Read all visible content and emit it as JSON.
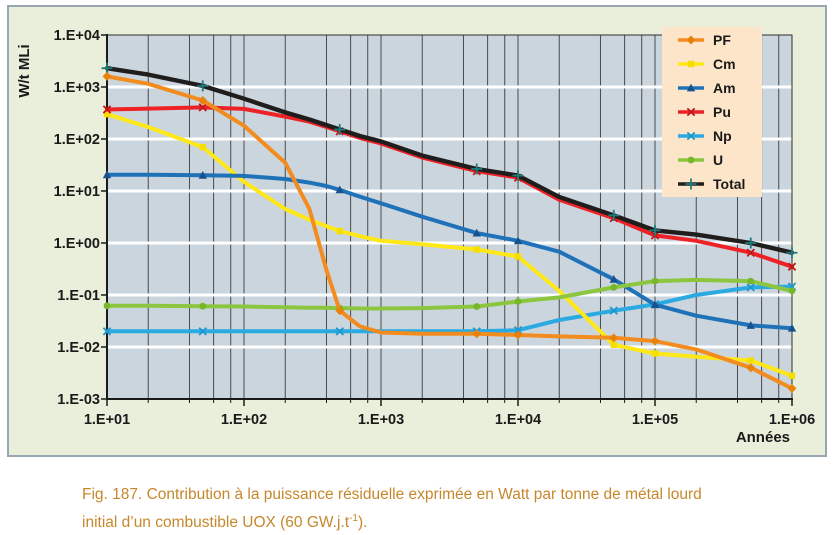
{
  "figure": {
    "caption_line1": "Fig. 187. Contribution à la puissance résiduelle exprimée en Watt par tonne de métal lourd",
    "caption_line2_prefix": "initial d’un combustible UOX (60 GW.j.t",
    "caption_line2_sup": "-1",
    "caption_line2_suffix": ").",
    "caption_color": "#C6872C"
  },
  "chart_data": {
    "type": "line",
    "x_scale": "log",
    "y_scale": "log",
    "x_label": "Années",
    "y_label": "W/t MLi",
    "x_range": [
      10,
      1000000
    ],
    "y_range": [
      0.001,
      10000
    ],
    "x_tick_labels": [
      "1.E+01",
      "1.E+02",
      "1.E+03",
      "1.E+04",
      "1.E+05",
      "1.E+06"
    ],
    "y_tick_labels": [
      "1.E+04",
      "1.E+03",
      "1.E+02",
      "1.E+01",
      "1.E+00",
      "1.E-01",
      "1.E-02",
      "1.E-03"
    ],
    "grid": {
      "vertical_minor_multiples": [
        2,
        4,
        6,
        8
      ],
      "horizontal": "major-decades-white"
    },
    "legend_position": "top-right",
    "x": [
      10,
      20,
      50,
      100,
      200,
      300,
      400,
      500,
      700,
      1000,
      2000,
      5000,
      10000,
      20000,
      50000,
      100000,
      200000,
      500000,
      1000000
    ],
    "marker_x": [
      10,
      50,
      500,
      5000,
      10000,
      50000,
      100000,
      500000,
      1000000
    ],
    "draw_order": [
      "Np",
      "Cm",
      "Am",
      "U",
      "Pu",
      "Total",
      "PF"
    ],
    "series": [
      {
        "name": "PF",
        "color": "#F28C1E",
        "marker_color": "#E8820C",
        "marker": "diamond",
        "values": [
          1600,
          1150,
          550,
          180,
          35,
          4.5,
          0.3,
          0.05,
          0.025,
          0.019,
          0.018,
          0.018,
          0.017,
          0.016,
          0.015,
          0.013,
          0.009,
          0.004,
          0.0016
        ]
      },
      {
        "name": "Cm",
        "color": "#FFE817",
        "marker_color": "#F5DF00",
        "marker": "square",
        "values": [
          300,
          170,
          70,
          15,
          4.5,
          2.8,
          2.1,
          1.7,
          1.35,
          1.1,
          0.95,
          0.75,
          0.55,
          0.12,
          0.011,
          0.0075,
          0.0065,
          0.0055,
          0.0028
        ]
      },
      {
        "name": "Am",
        "color": "#1F72B8",
        "marker_color": "#17528F",
        "marker": "triangle",
        "values": [
          20.5,
          20.5,
          20,
          19.5,
          17,
          14.5,
          12.5,
          10.5,
          7.8,
          5.8,
          3.2,
          1.55,
          1.1,
          0.68,
          0.2,
          0.065,
          0.04,
          0.026,
          0.023
        ]
      },
      {
        "name": "Pu",
        "color": "#EC2227",
        "marker_color": "#C2161B",
        "marker": "x",
        "values": [
          370,
          385,
          405,
          380,
          270,
          215,
          170,
          140,
          105,
          82,
          44,
          24,
          18,
          6.8,
          3.0,
          1.4,
          1.1,
          0.65,
          0.35
        ]
      },
      {
        "name": "Np",
        "color": "#2BAAE2",
        "marker_color": "#1F97CE",
        "marker": "x",
        "values": [
          0.02,
          0.02,
          0.02,
          0.02,
          0.02,
          0.02,
          0.02,
          0.02,
          0.02,
          0.02,
          0.02,
          0.02,
          0.021,
          0.033,
          0.05,
          0.066,
          0.1,
          0.14,
          0.145
        ]
      },
      {
        "name": "U",
        "color": "#8CC63F",
        "marker_color": "#76B82A",
        "marker": "circle",
        "values": [
          0.062,
          0.062,
          0.061,
          0.06,
          0.058,
          0.057,
          0.057,
          0.056,
          0.055,
          0.055,
          0.056,
          0.06,
          0.075,
          0.09,
          0.14,
          0.185,
          0.195,
          0.185,
          0.12
        ]
      },
      {
        "name": "Total",
        "color": "#201D1D",
        "marker_color": "#1E7D7B",
        "marker": "plus",
        "width": 4.4,
        "values": [
          2300,
          1730,
          1050,
          595,
          325,
          237,
          185,
          152,
          114,
          90,
          48,
          26.5,
          19.8,
          7.7,
          3.4,
          1.75,
          1.45,
          1.0,
          0.65
        ]
      }
    ],
    "colors": {
      "panel_bg": "#E9EFDB",
      "panel_border": "#97A6B1",
      "plot_bg": "#CBD5DE",
      "grid_dark": "#4A4A4A",
      "grid_white": "#FFFFFF",
      "axis": "#1A1A1A",
      "legend_bg": "#FCE5C9",
      "text": "#1A1A1A"
    }
  }
}
